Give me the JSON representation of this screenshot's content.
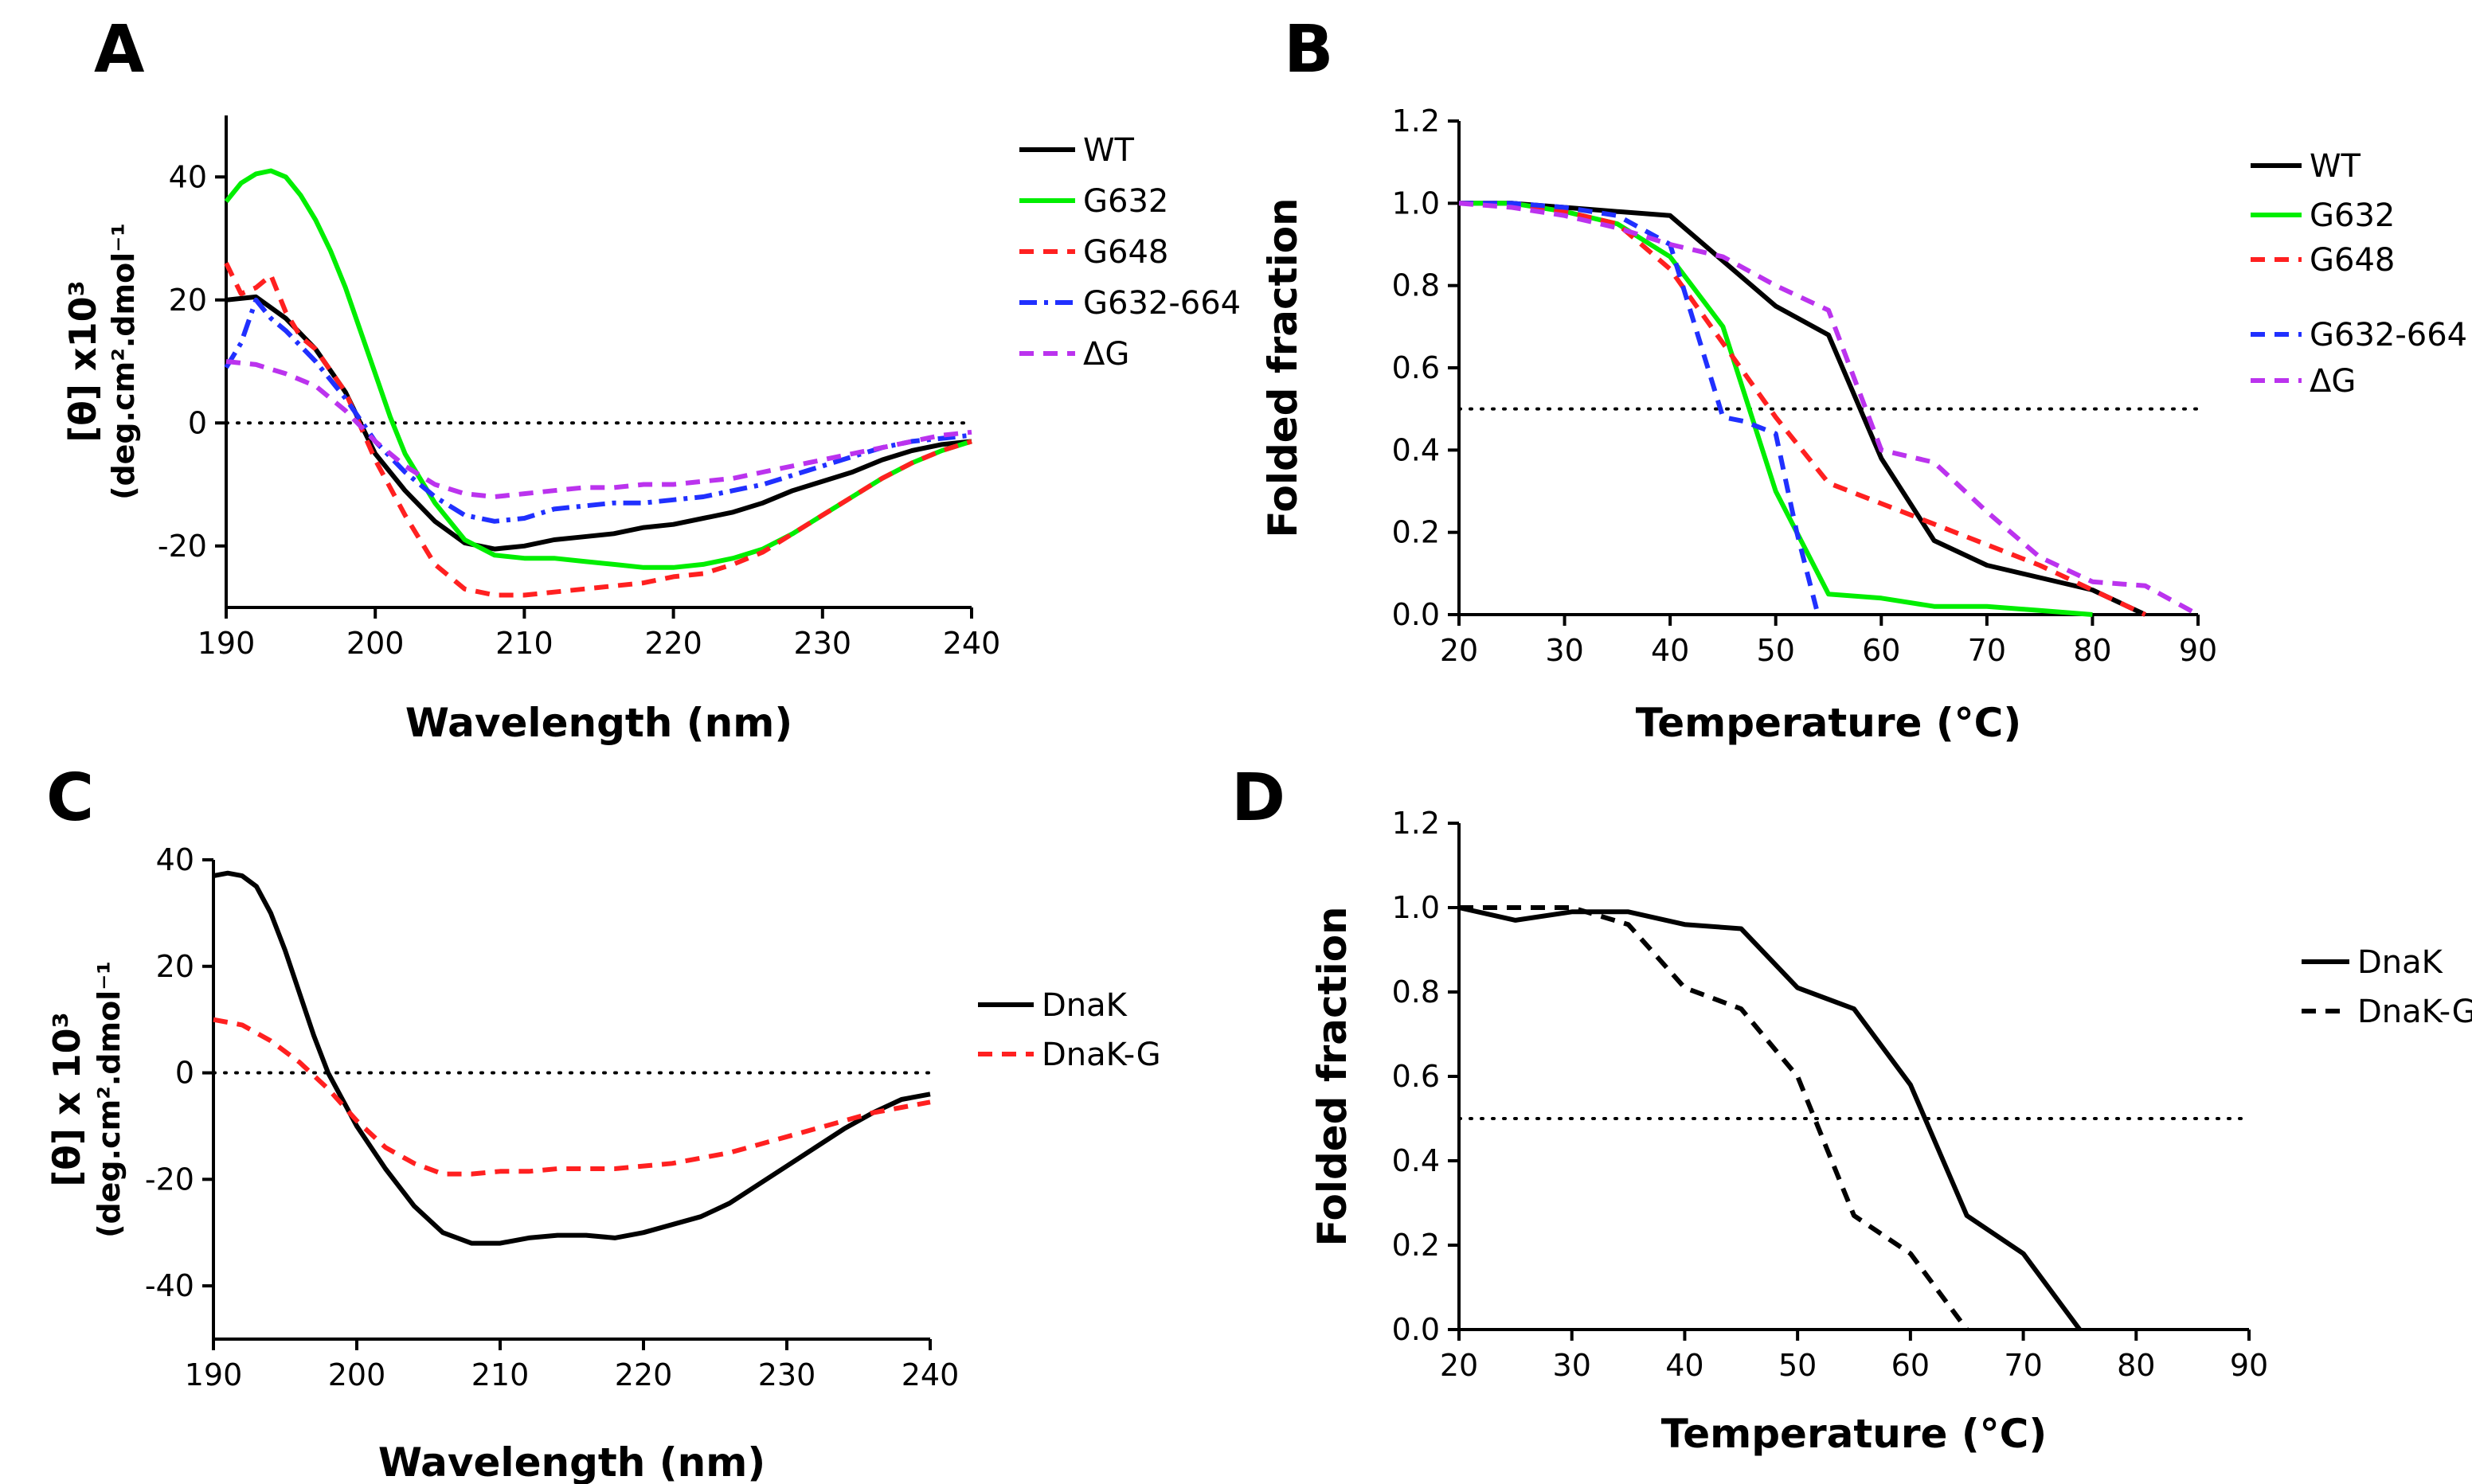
{
  "chart_data": [
    {
      "panel": "A",
      "type": "line",
      "title": "",
      "xlabel": "Wavelength (nm)",
      "ylabel": "[θ] x10³",
      "ylabel_sub": "(deg.cm².dmol⁻¹",
      "xlim": [
        190,
        240
      ],
      "ylim": [
        -30,
        50
      ],
      "xticks": [
        190,
        200,
        210,
        220,
        230,
        240
      ],
      "yticks": [
        -20,
        0,
        20,
        40
      ],
      "reference_y": 0,
      "legend_position": "right",
      "series": [
        {
          "name": "WT",
          "color": "#000000",
          "dash": "solid",
          "x": [
            190,
            192,
            194,
            196,
            198,
            200,
            202,
            204,
            206,
            208,
            210,
            212,
            214,
            216,
            218,
            220,
            222,
            224,
            226,
            228,
            230,
            232,
            234,
            236,
            238,
            240
          ],
          "y": [
            20,
            20.5,
            17,
            12,
            5,
            -5,
            -11,
            -16,
            -19.5,
            -20.5,
            -20,
            -19,
            -18.5,
            -18,
            -17,
            -16.5,
            -15.5,
            -14.5,
            -13,
            -11,
            -9.5,
            -8,
            -6,
            -4.5,
            -3.5,
            -3
          ]
        },
        {
          "name": "G632",
          "color": "#00ee00",
          "dash": "solid",
          "x": [
            190,
            191,
            192,
            193,
            194,
            195,
            196,
            197,
            198,
            199,
            200,
            201,
            202,
            204,
            206,
            208,
            210,
            212,
            214,
            216,
            218,
            220,
            222,
            224,
            226,
            228,
            230,
            232,
            234,
            236,
            238,
            240
          ],
          "y": [
            36,
            39,
            40.5,
            41,
            40,
            37,
            33,
            28,
            22,
            15,
            8,
            1,
            -5,
            -13,
            -19,
            -21.5,
            -22,
            -22,
            -22.5,
            -23,
            -23.5,
            -23.5,
            -23,
            -22,
            -20.5,
            -18,
            -15,
            -12,
            -9,
            -6.5,
            -4.5,
            -3
          ]
        },
        {
          "name": "G648",
          "color": "#ff2020",
          "dash": "dashed",
          "x": [
            190,
            191,
            192,
            193,
            194,
            195,
            196,
            198,
            200,
            202,
            204,
            206,
            208,
            210,
            212,
            214,
            216,
            218,
            220,
            222,
            224,
            226,
            228,
            230,
            232,
            234,
            236,
            238,
            240
          ],
          "y": [
            26,
            21,
            22,
            24,
            18,
            14,
            12,
            5,
            -6,
            -15,
            -23,
            -27,
            -28,
            -28,
            -27.5,
            -27,
            -26.5,
            -26,
            -25,
            -24.5,
            -23,
            -21,
            -18,
            -15,
            -12,
            -9,
            -6.5,
            -4.5,
            -3
          ]
        },
        {
          "name": "G632-664",
          "color": "#2030ff",
          "dash": "dashdot",
          "x": [
            190,
            191,
            192,
            193,
            194,
            196,
            198,
            200,
            202,
            204,
            206,
            208,
            210,
            212,
            214,
            216,
            218,
            220,
            222,
            224,
            226,
            228,
            230,
            232,
            234,
            236,
            238,
            240
          ],
          "y": [
            9,
            13,
            20,
            17,
            15,
            10,
            4,
            -3,
            -8,
            -12,
            -15,
            -16,
            -15.5,
            -14,
            -13.5,
            -13,
            -13,
            -12.5,
            -12,
            -11,
            -10,
            -8.5,
            -7,
            -5.5,
            -4,
            -3,
            -2.5,
            -2
          ]
        },
        {
          "name": "ΔG",
          "color": "#bb33ee",
          "dash": "dashed",
          "x": [
            190,
            192,
            194,
            196,
            198,
            200,
            202,
            204,
            206,
            208,
            210,
            212,
            214,
            216,
            218,
            220,
            222,
            224,
            226,
            228,
            230,
            232,
            234,
            236,
            238,
            240
          ],
          "y": [
            10,
            9.5,
            8,
            6,
            2,
            -3,
            -7,
            -10,
            -11.5,
            -12,
            -11.5,
            -11,
            -10.5,
            -10.5,
            -10,
            -10,
            -9.5,
            -9,
            -8,
            -7,
            -6,
            -5,
            -4,
            -3,
            -2,
            -1.5
          ]
        }
      ]
    },
    {
      "panel": "B",
      "type": "line",
      "title": "",
      "xlabel": "Temperature (°C)",
      "ylabel": "Folded fraction",
      "xlim": [
        20,
        90
      ],
      "ylim": [
        0,
        1.2
      ],
      "xticks": [
        20,
        30,
        40,
        50,
        60,
        70,
        80,
        90
      ],
      "yticks": [
        "0.0",
        "0.2",
        "0.4",
        "0.6",
        "0.8",
        "1.0",
        "1.2"
      ],
      "reference_y": 0.5,
      "legend_position": "right",
      "series": [
        {
          "name": "WT",
          "color": "#000000",
          "dash": "solid",
          "x": [
            20,
            25,
            30,
            35,
            40,
            45,
            50,
            55,
            60,
            65,
            70,
            75,
            80,
            85
          ],
          "y": [
            1.0,
            1.0,
            0.99,
            0.98,
            0.97,
            0.86,
            0.75,
            0.68,
            0.38,
            0.18,
            0.12,
            0.09,
            0.06,
            0.0
          ]
        },
        {
          "name": "G632",
          "color": "#00ee00",
          "dash": "solid",
          "x": [
            20,
            25,
            30,
            35,
            40,
            45,
            50,
            55,
            60,
            65,
            70,
            75,
            80
          ],
          "y": [
            1.0,
            1.0,
            0.98,
            0.95,
            0.87,
            0.7,
            0.3,
            0.05,
            0.04,
            0.02,
            0.02,
            0.01,
            0.0
          ]
        },
        {
          "name": "G648",
          "color": "#ff2020",
          "dash": "dashed",
          "x": [
            20,
            25,
            30,
            35,
            40,
            45,
            50,
            55,
            60,
            65,
            70,
            75,
            80,
            85
          ],
          "y": [
            1.0,
            1.0,
            0.98,
            0.95,
            0.84,
            0.66,
            0.48,
            0.32,
            0.27,
            0.22,
            0.17,
            0.12,
            0.06,
            0.0
          ]
        },
        {
          "name": "G632-664",
          "color": "#2030ff",
          "dash": "dashed",
          "x": [
            20,
            25,
            30,
            35,
            40,
            45,
            47,
            50,
            52,
            54
          ],
          "y": [
            1.0,
            1.0,
            0.99,
            0.97,
            0.9,
            0.48,
            0.47,
            0.44,
            0.2,
            0.0
          ]
        },
        {
          "name": "ΔG",
          "color": "#bb33ee",
          "dash": "dashed",
          "x": [
            20,
            25,
            30,
            35,
            40,
            45,
            50,
            55,
            60,
            65,
            70,
            75,
            80,
            85,
            90
          ],
          "y": [
            1.0,
            0.99,
            0.97,
            0.94,
            0.9,
            0.87,
            0.8,
            0.74,
            0.4,
            0.37,
            0.25,
            0.14,
            0.08,
            0.07,
            0.0
          ]
        }
      ]
    },
    {
      "panel": "C",
      "type": "line",
      "title": "",
      "xlabel": "Wavelength (nm)",
      "ylabel": "[θ] x 10³",
      "ylabel_sub": "(deg.cm².dmol⁻¹",
      "xlim": [
        190,
        240
      ],
      "ylim": [
        -50,
        40
      ],
      "xticks": [
        190,
        200,
        210,
        220,
        230,
        240
      ],
      "yticks": [
        -40,
        -20,
        0,
        20,
        40
      ],
      "reference_y": 0,
      "legend_position": "right",
      "series": [
        {
          "name": "DnaK",
          "color": "#000000",
          "dash": "solid",
          "x": [
            190,
            191,
            192,
            193,
            194,
            195,
            196,
            197,
            198,
            199,
            200,
            202,
            204,
            206,
            208,
            210,
            212,
            214,
            216,
            218,
            220,
            222,
            224,
            226,
            228,
            230,
            232,
            234,
            236,
            238,
            240
          ],
          "y": [
            37,
            37.5,
            37,
            35,
            30,
            23,
            15,
            7,
            0,
            -5,
            -10,
            -18,
            -25,
            -30,
            -32,
            -32,
            -31,
            -30.5,
            -30.5,
            -31,
            -30,
            -28.5,
            -27,
            -24.5,
            -21,
            -17.5,
            -14,
            -10.5,
            -7.5,
            -5,
            -4
          ]
        },
        {
          "name": "DnaK-G",
          "color": "#ff2020",
          "dash": "dashed",
          "x": [
            190,
            192,
            194,
            196,
            198,
            200,
            202,
            204,
            206,
            208,
            210,
            212,
            214,
            216,
            218,
            220,
            222,
            224,
            226,
            228,
            230,
            232,
            234,
            236,
            238,
            240
          ],
          "y": [
            10,
            9,
            6,
            2,
            -3,
            -9,
            -14,
            -17,
            -19,
            -19,
            -18.5,
            -18.5,
            -18,
            -18,
            -18,
            -17.5,
            -17,
            -16,
            -15,
            -13.5,
            -12,
            -10.5,
            -9,
            -7.5,
            -6.5,
            -5.5
          ]
        }
      ]
    },
    {
      "panel": "D",
      "type": "line",
      "title": "",
      "xlabel": "Temperature (°C)",
      "ylabel": "Folded fraction",
      "xlim": [
        20,
        90
      ],
      "ylim": [
        0,
        1.2
      ],
      "xticks": [
        20,
        30,
        40,
        50,
        60,
        70,
        80,
        90
      ],
      "yticks": [
        "0.0",
        "0.2",
        "0.4",
        "0.6",
        "0.8",
        "1.0",
        "1.2"
      ],
      "reference_y": 0.5,
      "legend_position": "right",
      "series": [
        {
          "name": "DnaK",
          "color": "#000000",
          "dash": "solid",
          "x": [
            20,
            25,
            30,
            35,
            40,
            45,
            50,
            55,
            60,
            65,
            70,
            75
          ],
          "y": [
            1.0,
            0.97,
            0.99,
            0.99,
            0.96,
            0.95,
            0.81,
            0.76,
            0.58,
            0.27,
            0.18,
            0.0
          ]
        },
        {
          "name": "DnaK-G",
          "color": "#000000",
          "dash": "dashed",
          "x": [
            20,
            25,
            30,
            35,
            40,
            45,
            50,
            55,
            60,
            65
          ],
          "y": [
            1.0,
            1.0,
            1.0,
            0.96,
            0.81,
            0.76,
            0.6,
            0.27,
            0.18,
            0.0
          ]
        }
      ]
    }
  ]
}
